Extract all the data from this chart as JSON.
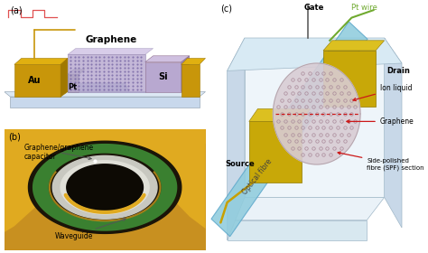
{
  "background_color": "#ffffff",
  "fig_width": 4.74,
  "fig_height": 2.8,
  "dpi": 100,
  "panel_a": {
    "facecolor": "#f0f4f8",
    "base_top_color": "#d8e4f0",
    "base_side_color": "#b8cce0",
    "base_front_color": "#c8d8ec",
    "waveguide_color": "#c0ccd8",
    "au_front": "#c8960a",
    "au_top": "#e0b010",
    "au_side": "#a07800",
    "pt_color": "#b0b0b0",
    "graphene_fill": "#b0a0cc",
    "graphene_edge": "#8070a0",
    "graphene_dot": "#7060a0",
    "si_front": "#b8a8d0",
    "si_top": "#cfc0e0",
    "si_side": "#9888b8",
    "signal_color": "#e05050",
    "wire_color": "#c8960a"
  },
  "panel_b": {
    "bg_color": "#c89020",
    "gold_light": "#e0aa20",
    "gold_mid": "#c89020",
    "gold_dark": "#906010",
    "dark_core": "#1a1408",
    "darker_core": "#0d0a04",
    "gray_inner": "#b0b0a8",
    "green_outer": "#3a8030",
    "green_inner": "#508040",
    "label_color": "#cccccc"
  },
  "panel_c": {
    "box_face": "#dce8f0",
    "box_edge": "#b0c8d8",
    "platform_face": "#e8eff5",
    "platform_edge": "#c0d0e0",
    "fiber_face": "#90ccdd",
    "fiber_edge": "#60aacc",
    "gold_face": "#c8a808",
    "gold_top": "#dcc020",
    "gold_edge": "#907800",
    "circle_face": "#d8ccd4",
    "circle_edge": "#b0a0a8",
    "dot_color": "#c0a0b0",
    "dot_edge": "#a88898",
    "red_line": "#cc1818",
    "gate_wire": "#606060",
    "pt_wire_color": "#70aa30",
    "arrow_color": "#cc1818",
    "label_gate": "Gate",
    "label_ptwire": "Pt wire",
    "label_drain": "Drain",
    "label_source": "Source",
    "label_ionliq": "Ion liquid",
    "label_graphene": "Graphene",
    "label_spf1": "Side-polished",
    "label_spf2": "fibre (SPF) section",
    "label_fiber": "Optical fibre",
    "label_c": "(c)"
  }
}
